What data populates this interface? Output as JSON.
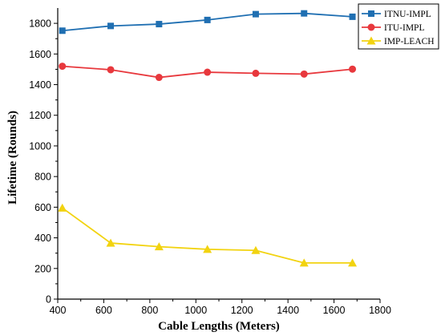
{
  "chart_data": {
    "type": "line",
    "title": "",
    "xlabel": "Cable Lengths (Meters)",
    "ylabel": "Lifetime (Rounds)",
    "xlim": [
      400,
      1800
    ],
    "ylim": [
      0,
      1900
    ],
    "xticks": [
      400,
      600,
      800,
      1000,
      1200,
      1400,
      1600,
      1800
    ],
    "yticks": [
      0,
      200,
      400,
      600,
      800,
      1000,
      1200,
      1400,
      1600,
      1800
    ],
    "grid": false,
    "legend_position": "top-right",
    "x": [
      420,
      630,
      840,
      1050,
      1260,
      1470,
      1680
    ],
    "series": [
      {
        "name": "ITNU-IMPL",
        "color": "#1f6fb2",
        "marker": "square",
        "values": [
          1752,
          1783,
          1795,
          1822,
          1860,
          1865,
          1843
        ]
      },
      {
        "name": "ITU-IMPL",
        "color": "#e8383d",
        "marker": "circle",
        "values": [
          1520,
          1497,
          1447,
          1481,
          1474,
          1469,
          1501
        ]
      },
      {
        "name": "IMP-LEACH",
        "color": "#f2d310",
        "marker": "triangle",
        "values": [
          595,
          366,
          342,
          325,
          318,
          236,
          236
        ]
      }
    ]
  }
}
